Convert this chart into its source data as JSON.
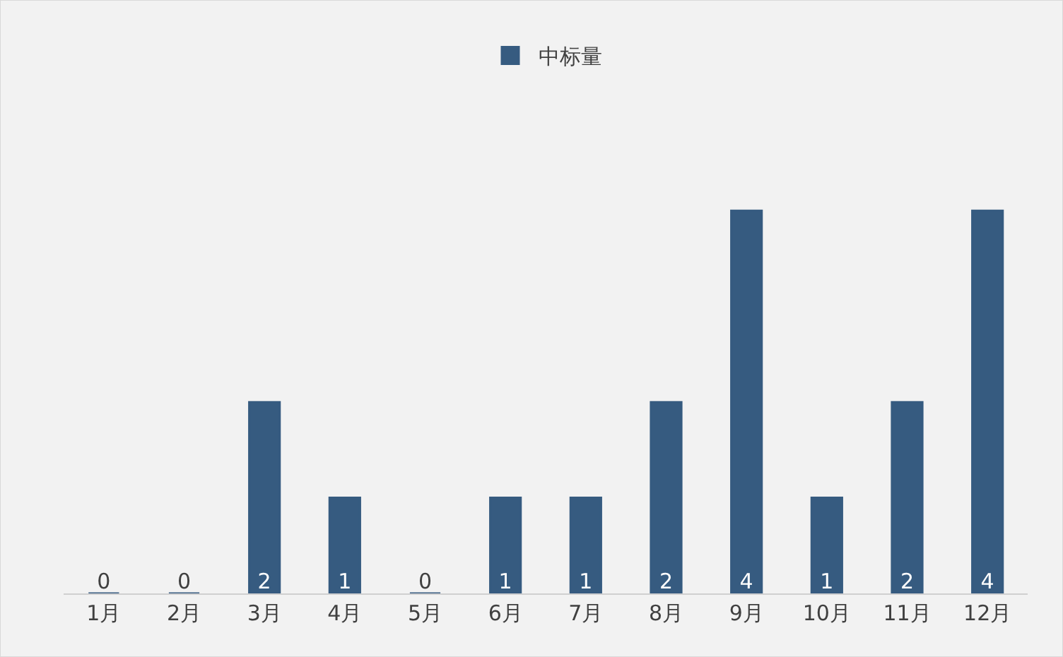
{
  "chart_data": {
    "type": "bar",
    "categories": [
      "1月",
      "2月",
      "3月",
      "4月",
      "5月",
      "6月",
      "7月",
      "8月",
      "9月",
      "10月",
      "11月",
      "12月"
    ],
    "series": [
      {
        "name": "中标量",
        "color": "#365b80",
        "values": [
          0,
          0,
          2,
          1,
          0,
          1,
          1,
          2,
          4,
          1,
          2,
          4
        ]
      }
    ],
    "data_labels": true,
    "legend": "top",
    "grid": false
  }
}
